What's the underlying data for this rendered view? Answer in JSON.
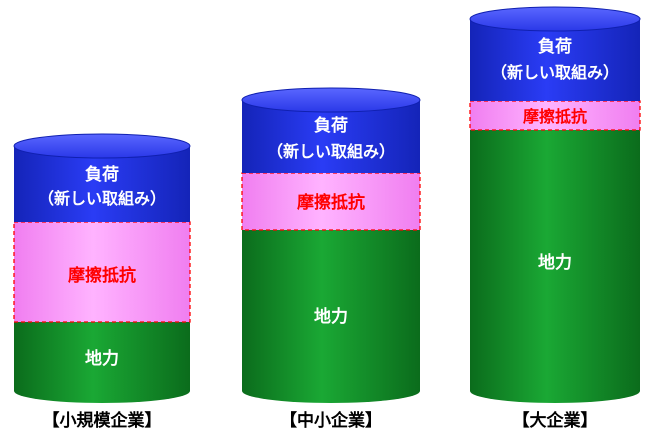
{
  "layers": {
    "load_line1": "負荷",
    "load_line2": "（新しい取組み）",
    "friction": "摩擦抵抗",
    "ground": "地力"
  },
  "captions": {
    "small": "【小規模企業】",
    "medium": "【中小企業】",
    "large": "【大企業】"
  },
  "colors": {
    "blue": "#1e2ee0",
    "pink": "#ff99ff",
    "green": "#14962a",
    "friction_text": "#ff0000",
    "white_text": "#ffffff",
    "dash": "#ff0000"
  }
}
